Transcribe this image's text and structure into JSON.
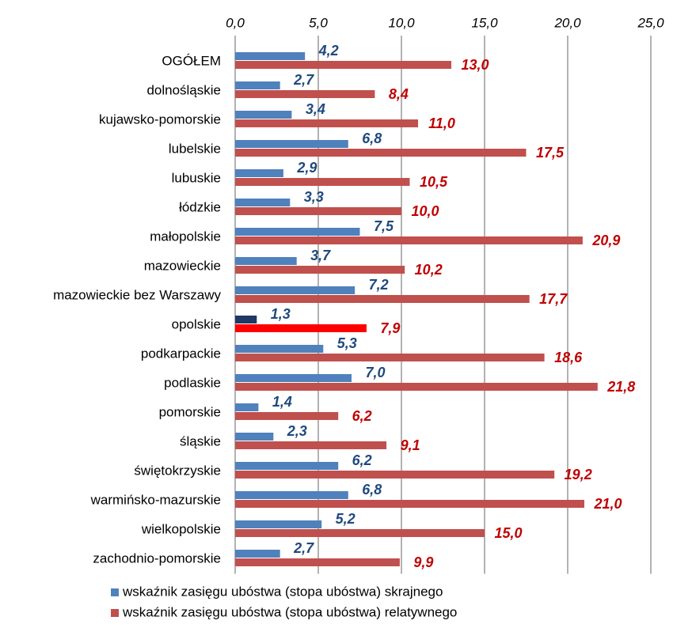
{
  "chart_data": {
    "type": "bar",
    "orientation": "horizontal",
    "categories": [
      "OGÓŁEM",
      "dolnośląskie",
      "kujawsko-pomorskie",
      "lubelskie",
      "lubuskie",
      "łódzkie",
      "małopolskie",
      "mazowieckie",
      "mazowieckie bez Warszawy",
      "opolskie",
      "podkarpackie",
      "podlaskie",
      "pomorskie",
      "śląskie",
      "świętokrzyskie",
      "warmińsko-mazurskie",
      "wielkopolskie",
      "zachodnio-pomorskie"
    ],
    "series": [
      {
        "name": "wskaźnik zasięgu ubóstwa (stopa ubóstwa) skrajnego",
        "color": "#4f81bd",
        "label_color": "#1f497d",
        "values": [
          4.2,
          2.7,
          3.4,
          6.8,
          2.9,
          3.3,
          7.5,
          3.7,
          7.2,
          1.3,
          5.3,
          7.0,
          1.4,
          2.3,
          6.2,
          6.8,
          5.2,
          2.7
        ],
        "value_labels": [
          "4,2",
          "2,7",
          "3,4",
          "6,8",
          "2,9",
          "3,3",
          "7,5",
          "3,7",
          "7,2",
          "1,3",
          "5,3",
          "7,0",
          "1,4",
          "2,3",
          "6,2",
          "6,8",
          "5,2",
          "2,7"
        ],
        "colors": [
          "#4f81bd",
          "#4f81bd",
          "#4f81bd",
          "#4f81bd",
          "#4f81bd",
          "#4f81bd",
          "#4f81bd",
          "#4f81bd",
          "#4f81bd",
          "#1f3864",
          "#4f81bd",
          "#4f81bd",
          "#4f81bd",
          "#4f81bd",
          "#4f81bd",
          "#4f81bd",
          "#4f81bd",
          "#4f81bd"
        ]
      },
      {
        "name": "wskaźnik zasięgu ubóstwa (stopa ubóstwa) relatywnego",
        "color": "#c0504d",
        "label_color": "#c00000",
        "values": [
          13.0,
          8.4,
          11.0,
          17.5,
          10.5,
          10.0,
          20.9,
          10.2,
          17.7,
          7.9,
          18.6,
          21.8,
          6.2,
          9.1,
          19.2,
          21.0,
          15.0,
          9.9
        ],
        "value_labels": [
          "13,0",
          "8,4",
          "11,0",
          "17,5",
          "10,5",
          "10,0",
          "20,9",
          "10,2",
          "17,7",
          "7,9",
          "18,6",
          "21,8",
          "6,2",
          "9,1",
          "19,2",
          "21,0",
          "15,0",
          "9,9"
        ],
        "colors": [
          "#c0504d",
          "#c0504d",
          "#c0504d",
          "#c0504d",
          "#c0504d",
          "#c0504d",
          "#c0504d",
          "#c0504d",
          "#c0504d",
          "#ff0000",
          "#c0504d",
          "#c0504d",
          "#c0504d",
          "#c0504d",
          "#c0504d",
          "#c0504d",
          "#c0504d",
          "#c0504d"
        ]
      }
    ],
    "xlim": [
      0,
      25
    ],
    "xticks": [
      {
        "value": 0,
        "label": "0,0"
      },
      {
        "value": 5,
        "label": "5,0"
      },
      {
        "value": 10,
        "label": "10,0"
      },
      {
        "value": 15,
        "label": "15,0"
      },
      {
        "value": 20,
        "label": "20,0"
      },
      {
        "value": 25,
        "label": "25,0"
      }
    ],
    "grid": true,
    "legend": "bottom"
  }
}
